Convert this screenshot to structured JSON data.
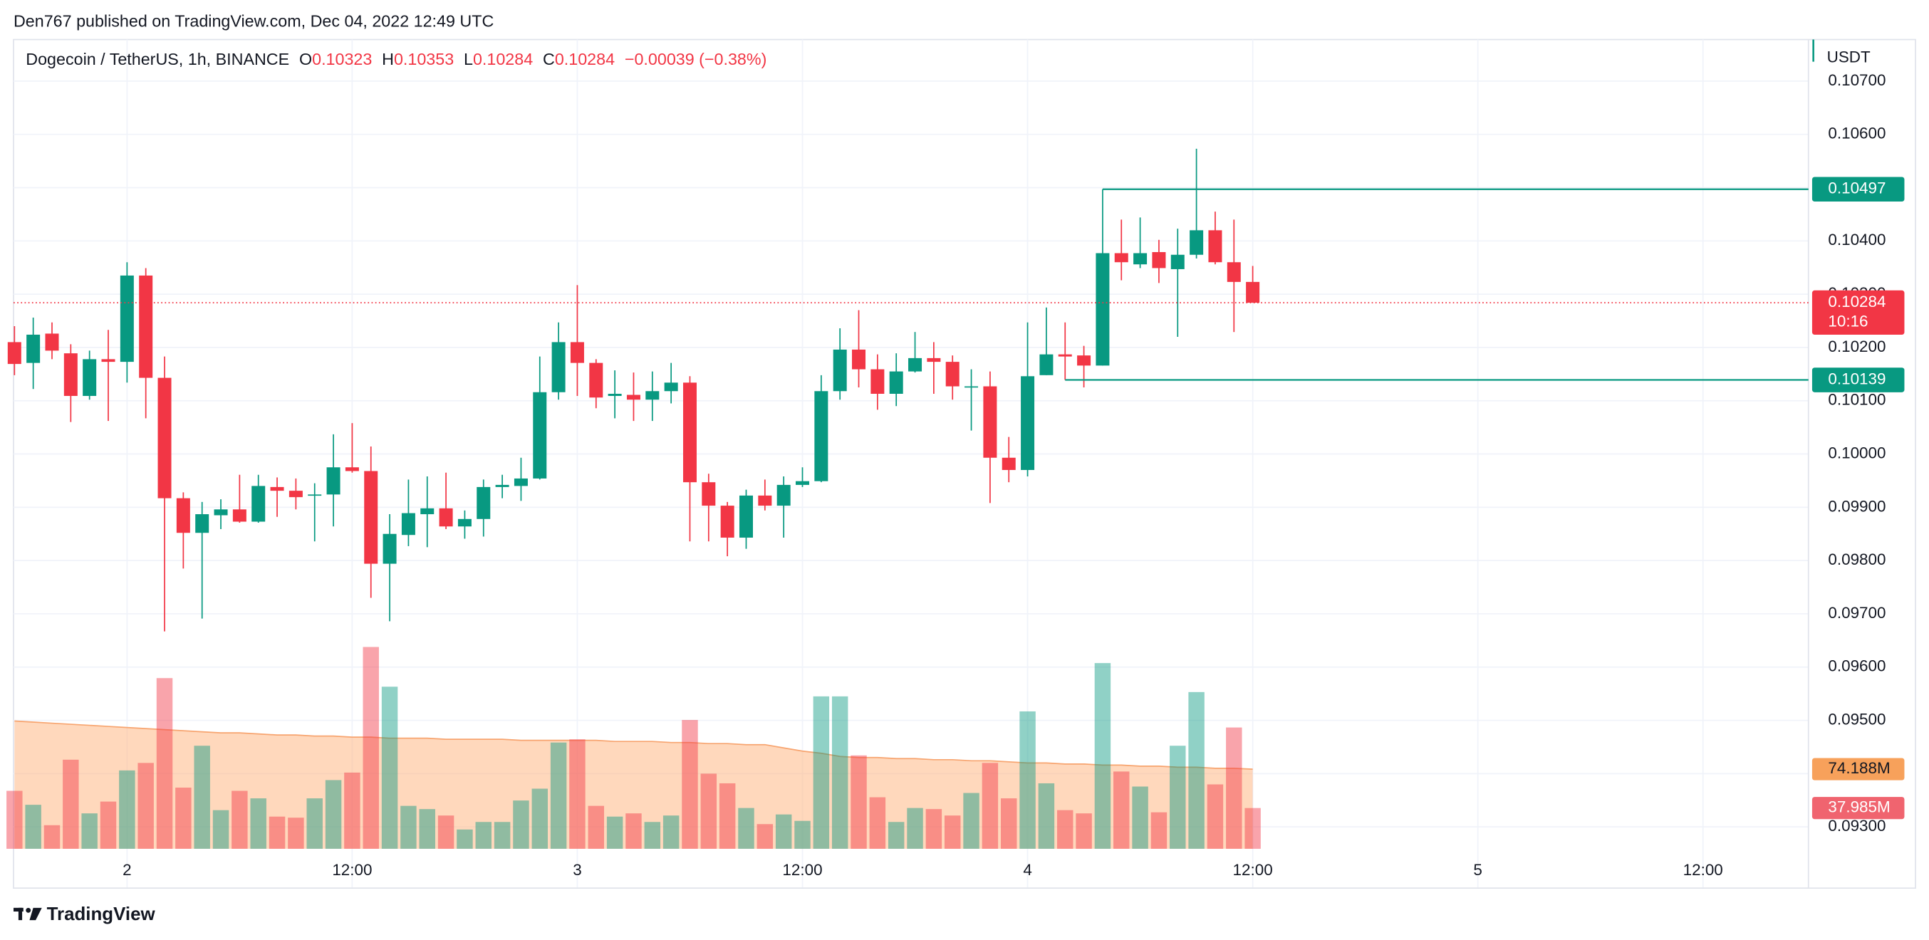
{
  "header": {
    "attribution": "Den767 published on TradingView.com, Dec 04, 2022 12:49 UTC",
    "brand": "TradingView"
  },
  "chart_data": {
    "type": "candlestick",
    "title": "Dogecoin / TetherUS, 1h, BINANCE",
    "legend": [
      {
        "key": "O",
        "value": "0.10323"
      },
      {
        "key": "H",
        "value": "0.10353"
      },
      {
        "key": "L",
        "value": "0.10284"
      },
      {
        "key": "C",
        "value": "0.10284"
      }
    ],
    "change": "−0.00039 (−0.38%)",
    "currency": "USDT",
    "up_color": "#089981",
    "down_color": "#f23645",
    "x": [
      0,
      1,
      2,
      3,
      4,
      5,
      6,
      7,
      8,
      9,
      10,
      11,
      12,
      13,
      14,
      15,
      16,
      17,
      18,
      19,
      20,
      21,
      22,
      23,
      24,
      25,
      26,
      27,
      28,
      29,
      30,
      31,
      32,
      33,
      34,
      35,
      36,
      37,
      38,
      39,
      40,
      41,
      42,
      43,
      44,
      45,
      46,
      47,
      48,
      49,
      50,
      51,
      52,
      53,
      54,
      55,
      56,
      57,
      58,
      59,
      60,
      61,
      62,
      63,
      64,
      65,
      66
    ],
    "open": [
      0.1021,
      0.10171,
      0.10226,
      0.10189,
      0.10109,
      0.10178,
      0.10173,
      0.10335,
      0.10143,
      0.09917,
      0.09852,
      0.09885,
      0.09896,
      0.09873,
      0.09938,
      0.09931,
      0.09922,
      0.09924,
      0.09975,
      0.09968,
      0.09794,
      0.09848,
      0.09887,
      0.09898,
      0.09864,
      0.09878,
      0.09938,
      0.0994,
      0.09954,
      0.10116,
      0.1021,
      0.10171,
      0.10109,
      0.10111,
      0.10102,
      0.10118,
      0.10134,
      0.09947,
      0.09903,
      0.09843,
      0.09922,
      0.09903,
      0.09942,
      0.09949,
      0.10118,
      0.10196,
      0.10159,
      0.10113,
      0.10155,
      0.1018,
      0.10173,
      0.10125,
      0.10127,
      0.09993,
      0.0997,
      0.10148,
      0.10187,
      0.10185,
      0.10166,
      0.10377,
      0.10356,
      0.10379,
      0.10347,
      0.10374,
      0.1042,
      0.1036,
      0.10323
    ],
    "high": [
      0.1024,
      0.10256,
      0.10247,
      0.10206,
      0.10194,
      0.10233,
      0.1036,
      0.10349,
      0.10183,
      0.09928,
      0.0991,
      0.09915,
      0.09961,
      0.09961,
      0.09956,
      0.09954,
      0.09945,
      0.10037,
      0.10058,
      0.10014,
      0.09887,
      0.09952,
      0.09958,
      0.09965,
      0.09894,
      0.09952,
      0.09961,
      0.09993,
      0.10183,
      0.10247,
      0.10317,
      0.10178,
      0.10157,
      0.10153,
      0.10155,
      0.10171,
      0.10146,
      0.09963,
      0.0991,
      0.09933,
      0.09952,
      0.09958,
      0.09975,
      0.10148,
      0.10236,
      0.1027,
      0.10187,
      0.10189,
      0.10229,
      0.1021,
      0.10185,
      0.10159,
      0.10155,
      0.10032,
      0.10247,
      0.10275,
      0.10247,
      0.10203,
      0.10497,
      0.1044,
      0.10444,
      0.10402,
      0.10423,
      0.10573,
      0.10455,
      0.1044,
      0.10353
    ],
    "low": [
      0.10148,
      0.10122,
      0.10178,
      0.1006,
      0.10102,
      0.10062,
      0.10134,
      0.10067,
      0.09667,
      0.09785,
      0.09691,
      0.09859,
      0.09871,
      0.09871,
      0.09882,
      0.09896,
      0.09836,
      0.09864,
      0.09965,
      0.0973,
      0.09686,
      0.09827,
      0.09825,
      0.09859,
      0.09841,
      0.09845,
      0.09917,
      0.09912,
      0.09952,
      0.10102,
      0.10109,
      0.10086,
      0.10067,
      0.10062,
      0.10062,
      0.10095,
      0.09836,
      0.09836,
      0.09808,
      0.09822,
      0.09894,
      0.09843,
      0.09938,
      0.09947,
      0.10102,
      0.10125,
      0.10083,
      0.1009,
      0.10153,
      0.10113,
      0.10102,
      0.10044,
      0.09908,
      0.09947,
      0.09958,
      0.10148,
      0.10139,
      0.10125,
      0.10166,
      0.10326,
      0.10349,
      0.10321,
      0.1022,
      0.10367,
      0.10356,
      0.10229,
      0.10284
    ],
    "close": [
      0.10169,
      0.10224,
      0.10194,
      0.10109,
      0.10178,
      0.10173,
      0.10335,
      0.10143,
      0.09917,
      0.09852,
      0.09887,
      0.09896,
      0.09873,
      0.0994,
      0.09931,
      0.09919,
      0.09924,
      0.09975,
      0.09968,
      0.09794,
      0.0985,
      0.09889,
      0.09898,
      0.09864,
      0.09878,
      0.09938,
      0.09942,
      0.09954,
      0.10116,
      0.1021,
      0.10171,
      0.10106,
      0.10113,
      0.10102,
      0.10118,
      0.10134,
      0.09947,
      0.09903,
      0.09843,
      0.09922,
      0.09903,
      0.09942,
      0.09949,
      0.10118,
      0.10196,
      0.10159,
      0.10113,
      0.10155,
      0.1018,
      0.10173,
      0.10127,
      0.10127,
      0.09993,
      0.0997,
      0.10146,
      0.10187,
      0.10183,
      0.10166,
      0.10377,
      0.1036,
      0.10377,
      0.10349,
      0.10374,
      0.1042,
      0.1036,
      0.10323,
      0.10284
    ],
    "volume": [
      54,
      41,
      22,
      83,
      33,
      44,
      73,
      80,
      159,
      57,
      96,
      36,
      54,
      47,
      30,
      29,
      47,
      64,
      71,
      188,
      151,
      40,
      37,
      31,
      18,
      25,
      25,
      45,
      56,
      99,
      102,
      40,
      30,
      33,
      25,
      31,
      120,
      70,
      61,
      38,
      23,
      32,
      26,
      142,
      142,
      87,
      48,
      25,
      38,
      37,
      31,
      52,
      80,
      47,
      128,
      61,
      36,
      33,
      173,
      72,
      58,
      34,
      96,
      146,
      60,
      113,
      37.985
    ],
    "volume_label": "37.985M",
    "volume_ma": {
      "values": [
        119,
        118,
        117,
        116,
        115,
        114,
        113,
        112,
        111,
        110,
        109,
        108,
        108,
        107,
        106,
        106,
        105,
        105,
        104,
        104,
        103,
        103,
        103,
        102,
        102,
        102,
        102,
        101,
        101,
        101,
        101,
        101,
        100,
        100,
        100,
        99,
        99,
        98,
        98,
        97,
        97,
        94,
        91,
        89,
        86,
        85,
        85,
        84,
        84,
        83,
        83,
        82,
        82,
        81,
        80,
        80,
        79,
        79,
        78,
        78,
        77,
        77,
        76,
        76,
        75,
        75,
        74.188
      ],
      "color": "#f7a46f",
      "label": "74.188M"
    },
    "vlim": [
      0,
      236
    ],
    "xlim": [
      -0.05,
      95.62
    ],
    "xticks": [
      {
        "value": 6,
        "label": "2"
      },
      {
        "value": 18,
        "label": "12:00"
      },
      {
        "value": 30,
        "label": "3"
      },
      {
        "value": 42,
        "label": "12:00"
      },
      {
        "value": 54,
        "label": "4"
      },
      {
        "value": 66,
        "label": "12:00"
      },
      {
        "value": 78,
        "label": "5"
      },
      {
        "value": 90,
        "label": "12:00"
      }
    ],
    "ylim": [
      0.09185,
      0.10778
    ],
    "yticks": [
      {
        "value": 0.107,
        "label": "0.10700"
      },
      {
        "value": 0.106,
        "label": "0.10600"
      },
      {
        "value": 0.105,
        "label": "0.10500"
      },
      {
        "value": 0.104,
        "label": "0.10400"
      },
      {
        "value": 0.103,
        "label": "0.10300"
      },
      {
        "value": 0.102,
        "label": "0.10200"
      },
      {
        "value": 0.101,
        "label": "0.10100"
      },
      {
        "value": 0.1,
        "label": "0.10000"
      },
      {
        "value": 0.099,
        "label": "0.09900"
      },
      {
        "value": 0.098,
        "label": "0.09800"
      },
      {
        "value": 0.097,
        "label": "0.09700"
      },
      {
        "value": 0.096,
        "label": "0.09600"
      },
      {
        "value": 0.095,
        "label": "0.09500"
      },
      {
        "value": 0.094,
        "label": "0.09400"
      },
      {
        "value": 0.093,
        "label": "0.09300"
      }
    ],
    "price_lines": [
      {
        "value": 0.10497,
        "label": "0.10497",
        "x": 58
      },
      {
        "value": 0.10139,
        "label": "0.10139",
        "x": 56
      }
    ],
    "last_price": {
      "value": 0.10284,
      "label": "0.10284",
      "countdown": "10:16"
    },
    "grid": true
  }
}
